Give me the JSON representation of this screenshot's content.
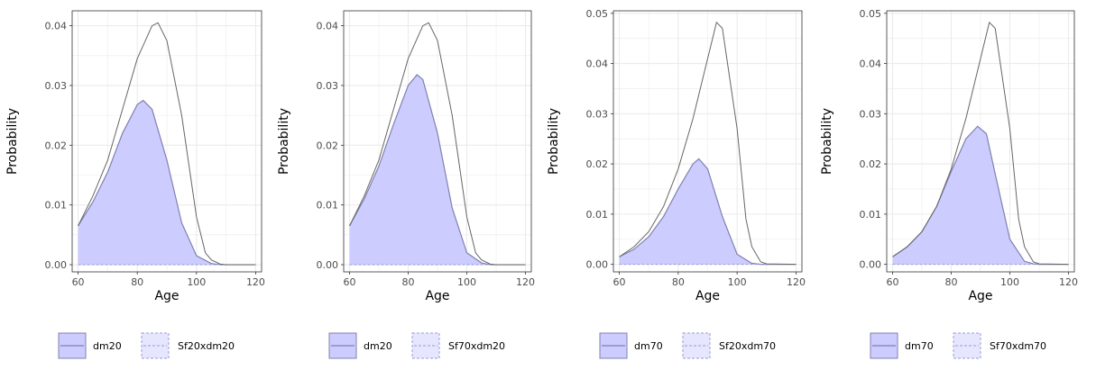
{
  "chart_data": [
    {
      "type": "area",
      "xlabel": "Age",
      "ylabel": "Probability",
      "xlim": [
        58,
        122
      ],
      "ylim": [
        -0.0012,
        0.0425
      ],
      "xticks": [
        60,
        80,
        100,
        120
      ],
      "xtick_labels": [
        "60",
        "80",
        "100",
        "120"
      ],
      "yticks": [
        0,
        0.01,
        0.02,
        0.03,
        0.04
      ],
      "ytick_labels": [
        "0.00",
        "0.01",
        "0.02",
        "0.03",
        "0.04"
      ],
      "grid": true,
      "legend_position": "bottom",
      "legend": [
        "dm20",
        "Sf20xdm20"
      ],
      "series": [
        {
          "name": "dm20",
          "kind": "filled",
          "x": [
            60,
            65,
            70,
            75,
            80,
            82,
            85,
            90,
            95,
            100,
            105,
            108,
            110,
            120
          ],
          "y": [
            0.0065,
            0.0105,
            0.0155,
            0.022,
            0.0268,
            0.0275,
            0.026,
            0.0175,
            0.007,
            0.0015,
            0.0002,
            0.0,
            0.0,
            0.0
          ]
        },
        {
          "name": "Sf20xdm20",
          "kind": "dashed",
          "x": [
            60,
            120
          ],
          "y": [
            0.0,
            0.0
          ]
        },
        {
          "name": "",
          "kind": "outline",
          "x": [
            60,
            65,
            70,
            75,
            80,
            85,
            87,
            90,
            95,
            100,
            103,
            105,
            108,
            110,
            120
          ],
          "y": [
            0.0065,
            0.0115,
            0.0175,
            0.026,
            0.0345,
            0.04,
            0.0405,
            0.0375,
            0.025,
            0.008,
            0.002,
            0.0008,
            0.0001,
            0.0,
            0.0
          ]
        }
      ]
    },
    {
      "type": "area",
      "xlabel": "Age",
      "ylabel": "Probability",
      "xlim": [
        58,
        122
      ],
      "ylim": [
        -0.0012,
        0.0425
      ],
      "xticks": [
        60,
        80,
        100,
        120
      ],
      "xtick_labels": [
        "60",
        "80",
        "100",
        "120"
      ],
      "yticks": [
        0,
        0.01,
        0.02,
        0.03,
        0.04
      ],
      "ytick_labels": [
        "0.00",
        "0.01",
        "0.02",
        "0.03",
        "0.04"
      ],
      "grid": true,
      "legend_position": "bottom",
      "legend": [
        "dm20",
        "Sf70xdm20"
      ],
      "series": [
        {
          "name": "dm20",
          "kind": "filled",
          "x": [
            60,
            65,
            70,
            75,
            80,
            83,
            85,
            90,
            95,
            100,
            105,
            108,
            110,
            120
          ],
          "y": [
            0.0065,
            0.011,
            0.0165,
            0.0235,
            0.03,
            0.0318,
            0.031,
            0.022,
            0.0095,
            0.002,
            0.0003,
            0.0,
            0.0,
            0.0
          ]
        },
        {
          "name": "Sf70xdm20",
          "kind": "dashed",
          "x": [
            60,
            120
          ],
          "y": [
            0.0,
            0.0
          ]
        },
        {
          "name": "",
          "kind": "outline",
          "x": [
            60,
            65,
            70,
            75,
            80,
            85,
            87,
            90,
            95,
            100,
            103,
            105,
            108,
            110,
            120
          ],
          "y": [
            0.0065,
            0.0115,
            0.0175,
            0.026,
            0.0345,
            0.04,
            0.0405,
            0.0375,
            0.025,
            0.008,
            0.002,
            0.0008,
            0.0001,
            0.0,
            0.0
          ]
        }
      ]
    },
    {
      "type": "area",
      "xlabel": "Age",
      "ylabel": "Probability",
      "xlim": [
        58,
        122
      ],
      "ylim": [
        -0.0015,
        0.0505
      ],
      "xticks": [
        60,
        80,
        100,
        120
      ],
      "xtick_labels": [
        "60",
        "80",
        "100",
        "120"
      ],
      "yticks": [
        0,
        0.01,
        0.02,
        0.03,
        0.04,
        0.05
      ],
      "ytick_labels": [
        "0.00",
        "0.01",
        "0.02",
        "0.03",
        "0.04",
        "0.05"
      ],
      "grid": true,
      "legend_position": "bottom",
      "legend": [
        "dm70",
        "Sf20xdm70"
      ],
      "series": [
        {
          "name": "dm70",
          "kind": "filled",
          "x": [
            60,
            65,
            70,
            75,
            80,
            85,
            87,
            90,
            95,
            100,
            105,
            108,
            110,
            120
          ],
          "y": [
            0.0015,
            0.003,
            0.0055,
            0.0095,
            0.015,
            0.02,
            0.021,
            0.019,
            0.0095,
            0.002,
            0.0002,
            0.0,
            0.0,
            0.0
          ]
        },
        {
          "name": "Sf20xdm70",
          "kind": "dashed",
          "x": [
            60,
            120
          ],
          "y": [
            0.0,
            0.0
          ]
        },
        {
          "name": "",
          "kind": "outline",
          "x": [
            60,
            65,
            70,
            75,
            80,
            85,
            90,
            93,
            95,
            100,
            103,
            105,
            108,
            110,
            120
          ],
          "y": [
            0.0015,
            0.0035,
            0.0065,
            0.0115,
            0.019,
            0.029,
            0.041,
            0.0482,
            0.047,
            0.027,
            0.009,
            0.0035,
            0.0005,
            0.0001,
            0.0
          ]
        }
      ]
    },
    {
      "type": "area",
      "xlabel": "Age",
      "ylabel": "Probability",
      "xlim": [
        58,
        122
      ],
      "ylim": [
        -0.0015,
        0.0505
      ],
      "xticks": [
        60,
        80,
        100,
        120
      ],
      "xtick_labels": [
        "60",
        "80",
        "100",
        "120"
      ],
      "yticks": [
        0,
        0.01,
        0.02,
        0.03,
        0.04,
        0.05
      ],
      "ytick_labels": [
        "0.00",
        "0.01",
        "0.02",
        "0.03",
        "0.04",
        "0.05"
      ],
      "grid": true,
      "legend_position": "bottom",
      "legend": [
        "dm70",
        "Sf70xdm70"
      ],
      "series": [
        {
          "name": "dm70",
          "kind": "filled",
          "x": [
            60,
            65,
            70,
            75,
            80,
            85,
            89,
            92,
            95,
            100,
            105,
            108,
            110,
            120
          ],
          "y": [
            0.0015,
            0.0035,
            0.0065,
            0.0115,
            0.0185,
            0.025,
            0.0275,
            0.026,
            0.018,
            0.005,
            0.0006,
            0.0001,
            0.0,
            0.0
          ]
        },
        {
          "name": "Sf70xdm70",
          "kind": "dashed",
          "x": [
            60,
            120
          ],
          "y": [
            0.0,
            0.0
          ]
        },
        {
          "name": "",
          "kind": "outline",
          "x": [
            60,
            65,
            70,
            75,
            80,
            85,
            90,
            93,
            95,
            100,
            103,
            105,
            108,
            110,
            120
          ],
          "y": [
            0.0015,
            0.0035,
            0.0065,
            0.0115,
            0.019,
            0.029,
            0.041,
            0.0482,
            0.047,
            0.027,
            0.009,
            0.0035,
            0.0005,
            0.0001,
            0.0
          ]
        }
      ]
    }
  ],
  "colors": {
    "fill": "#ccccff",
    "fill_stroke": "#8080b0",
    "outline": "#666666",
    "dashed": "#9999dd",
    "grid": "#ebebeb",
    "panel_border": "#333333",
    "axis_text": "#4d4d4d",
    "title_text": "#000000",
    "legend_dashed_fill": "#e6e6ff"
  }
}
